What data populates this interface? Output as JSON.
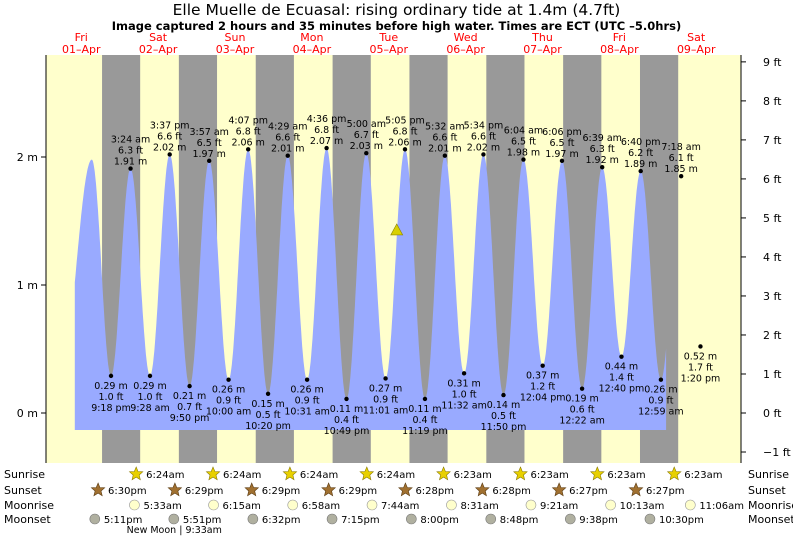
{
  "header": {
    "title": "Elle Muelle de Ecuasal: rising  ordinary tide at 1.4m (4.7ft)",
    "subtitle": "Image captured 2 hours and 35 minutes before high water. Times are ECT (UTC –5.0hrs)"
  },
  "colors": {
    "day": "#ffffcc",
    "night": "#999999",
    "tide": "#99aaff",
    "date_text": "#ff0000",
    "sun_star": "#e8d000",
    "sunset_star": "#a07030",
    "moon_light": "#ffffcc",
    "moon_dark": "#b0b0a0"
  },
  "chart_data": {
    "type": "area",
    "title": "Elle Muelle de Ecuasal: rising  ordinary tide at 1.4m (4.7ft)",
    "x_range_hours": [
      -1,
      195
    ],
    "y_range_m": [
      -0.45,
      2.65
    ],
    "days": [
      {
        "dow": "Fri",
        "date": "01–Apr"
      },
      {
        "dow": "Sat",
        "date": "02–Apr"
      },
      {
        "dow": "Sun",
        "date": "03–Apr"
      },
      {
        "dow": "Mon",
        "date": "04–Apr"
      },
      {
        "dow": "Tue",
        "date": "05–Apr"
      },
      {
        "dow": "Wed",
        "date": "06–Apr"
      },
      {
        "dow": "Thu",
        "date": "07–Apr"
      },
      {
        "dow": "Fri",
        "date": "08–Apr"
      },
      {
        "dow": "Sat",
        "date": "09–Apr"
      }
    ],
    "y_left_ticks": [
      {
        "value": 0,
        "label": "0 m"
      },
      {
        "value": 1,
        "label": "1 m"
      },
      {
        "value": 2,
        "label": "2 m"
      }
    ],
    "y_right_ticks": [
      {
        "ft": -1,
        "label": "−1 ft"
      },
      {
        "ft": 0,
        "label": "0 ft"
      },
      {
        "ft": 1,
        "label": "1 ft"
      },
      {
        "ft": 2,
        "label": "2 ft"
      },
      {
        "ft": 3,
        "label": "3 ft"
      },
      {
        "ft": 4,
        "label": "4 ft"
      },
      {
        "ft": 5,
        "label": "5 ft"
      },
      {
        "ft": 6,
        "label": "6 ft"
      },
      {
        "ft": 7,
        "label": "7 ft"
      },
      {
        "ft": 8,
        "label": "8 ft"
      },
      {
        "ft": 9,
        "label": "9 ft"
      }
    ],
    "extremes": [
      {
        "kind": "high",
        "t": "3:24 am",
        "ft": "6.3 ft",
        "m": "1.91 m",
        "hour": 27.4,
        "height": 1.91
      },
      {
        "kind": "high",
        "t": "3:37 pm",
        "ft": "6.6 ft",
        "m": "2.02 m",
        "hour": 39.62,
        "height": 2.02
      },
      {
        "kind": "high",
        "t": "3:57 am",
        "ft": "6.5 ft",
        "m": "1.97 m",
        "hour": 51.95,
        "height": 1.97
      },
      {
        "kind": "high",
        "t": "4:07 pm",
        "ft": "6.8 ft",
        "m": "2.06 m",
        "hour": 64.12,
        "height": 2.06
      },
      {
        "kind": "high",
        "t": "4:29 am",
        "ft": "6.6 ft",
        "m": "2.01 m",
        "hour": 76.48,
        "height": 2.01
      },
      {
        "kind": "high",
        "t": "4:36 pm",
        "ft": "6.8 ft",
        "m": "2.07 m",
        "hour": 88.6,
        "height": 2.07
      },
      {
        "kind": "high",
        "t": "5:00 am",
        "ft": "6.7 ft",
        "m": "2.03 m",
        "hour": 101.0,
        "height": 2.03
      },
      {
        "kind": "high",
        "t": "5:05 pm",
        "ft": "6.8 ft",
        "m": "2.06 m",
        "hour": 113.08,
        "height": 2.06
      },
      {
        "kind": "high",
        "t": "5:32 am",
        "ft": "6.6 ft",
        "m": "2.01 m",
        "hour": 125.53,
        "height": 2.01
      },
      {
        "kind": "high",
        "t": "5:34 pm",
        "ft": "6.6 ft",
        "m": "2.02 m",
        "hour": 137.57,
        "height": 2.02
      },
      {
        "kind": "high",
        "t": "6:04 am",
        "ft": "6.5 ft",
        "m": "1.98 m",
        "hour": 150.07,
        "height": 1.98
      },
      {
        "kind": "high",
        "t": "6:06 pm",
        "ft": "6.5 ft",
        "m": "1.97 m",
        "hour": 162.1,
        "height": 1.97
      },
      {
        "kind": "high",
        "t": "6:39 am",
        "ft": "6.3 ft",
        "m": "1.92 m",
        "hour": 174.65,
        "height": 1.92
      },
      {
        "kind": "high",
        "t": "6:40 pm",
        "ft": "6.2 ft",
        "m": "1.89 m",
        "hour": 186.67,
        "height": 1.89
      },
      {
        "kind": "high",
        "t": "7:18 am",
        "ft": "6.1 ft",
        "m": "1.85 m",
        "hour": 199.3,
        "height": 1.85
      },
      {
        "kind": "low",
        "t": "9:18 pm",
        "ft": "1.0 ft",
        "m": "0.29 m",
        "hour": 21.3,
        "height": 0.29
      },
      {
        "kind": "low",
        "t": "9:28 am",
        "ft": "1.0 ft",
        "m": "0.29 m",
        "hour": 33.47,
        "height": 0.29
      },
      {
        "kind": "low",
        "t": "9:50 pm",
        "ft": "0.7 ft",
        "m": "0.21 m",
        "hour": 45.83,
        "height": 0.21
      },
      {
        "kind": "low",
        "t": "10:00 am",
        "ft": "0.9 ft",
        "m": "0.26 m",
        "hour": 58.0,
        "height": 0.26
      },
      {
        "kind": "low",
        "t": "10:20 pm",
        "ft": "0.5 ft",
        "m": "0.15 m",
        "hour": 70.33,
        "height": 0.15
      },
      {
        "kind": "low",
        "t": "10:31 am",
        "ft": "0.9 ft",
        "m": "0.26 m",
        "hour": 82.52,
        "height": 0.26
      },
      {
        "kind": "low",
        "t": "10:49 pm",
        "ft": "0.4 ft",
        "m": "0.11 m",
        "hour": 94.82,
        "height": 0.11
      },
      {
        "kind": "low",
        "t": "11:01 am",
        "ft": "0.9 ft",
        "m": "0.27 m",
        "hour": 107.02,
        "height": 0.27
      },
      {
        "kind": "low",
        "t": "11:19 pm",
        "ft": "0.4 ft",
        "m": "0.11 m",
        "hour": 119.32,
        "height": 0.11
      },
      {
        "kind": "low",
        "t": "11:32 am",
        "ft": "1.0 ft",
        "m": "0.31 m",
        "hour": 131.53,
        "height": 0.31
      },
      {
        "kind": "low",
        "t": "11:50 pm",
        "ft": "0.5 ft",
        "m": "0.14 m",
        "hour": 143.83,
        "height": 0.14
      },
      {
        "kind": "low",
        "t": "12:04 pm",
        "ft": "1.2 ft",
        "m": "0.37 m",
        "hour": 156.07,
        "height": 0.37
      },
      {
        "kind": "low",
        "t": "12:22 am",
        "ft": "0.6 ft",
        "m": "0.19 m",
        "hour": 168.37,
        "height": 0.19
      },
      {
        "kind": "low",
        "t": "12:40 pm",
        "ft": "1.4 ft",
        "m": "0.44 m",
        "hour": 180.67,
        "height": 0.44
      },
      {
        "kind": "low",
        "t": "12:59 am",
        "ft": "0.9 ft",
        "m": "0.26 m",
        "hour": 192.98,
        "height": 0.26
      },
      {
        "kind": "low",
        "t": "1:20 pm",
        "ft": "1.7 ft",
        "m": "0.52 m",
        "hour": 205.33,
        "height": 0.52
      }
    ],
    "current": {
      "hour": 110.5,
      "height": 1.43
    },
    "nights": [
      {
        "start": 18.5,
        "end": 30.4
      },
      {
        "start": 42.48,
        "end": 54.4
      },
      {
        "start": 66.48,
        "end": 78.4
      },
      {
        "start": 90.48,
        "end": 102.4
      },
      {
        "start": 114.47,
        "end": 126.38
      },
      {
        "start": 138.47,
        "end": 150.38
      },
      {
        "start": 162.45,
        "end": 174.38
      },
      {
        "start": 186.45,
        "end": 198.38
      }
    ]
  },
  "astro": {
    "labels": {
      "sunrise": "Sunrise",
      "sunset": "Sunset",
      "moonrise": "Moonrise",
      "moonset": "Moonset"
    },
    "sunrise": [
      {
        "hour": 30.4,
        "t": "6:24am"
      },
      {
        "hour": 54.4,
        "t": "6:24am"
      },
      {
        "hour": 78.4,
        "t": "6:24am"
      },
      {
        "hour": 102.4,
        "t": "6:24am"
      },
      {
        "hour": 126.38,
        "t": "6:23am"
      },
      {
        "hour": 150.38,
        "t": "6:23am"
      },
      {
        "hour": 174.38,
        "t": "6:23am"
      },
      {
        "hour": 198.38,
        "t": "6:23am"
      }
    ],
    "sunset": [
      {
        "hour": 18.5,
        "t": "6:30pm"
      },
      {
        "hour": 42.48,
        "t": "6:29pm"
      },
      {
        "hour": 66.48,
        "t": "6:29pm"
      },
      {
        "hour": 90.48,
        "t": "6:29pm"
      },
      {
        "hour": 114.47,
        "t": "6:28pm"
      },
      {
        "hour": 138.47,
        "t": "6:28pm"
      },
      {
        "hour": 162.45,
        "t": "6:27pm"
      },
      {
        "hour": 186.45,
        "t": "6:27pm"
      }
    ],
    "moonrise": [
      {
        "hour": 29.55,
        "t": "5:33am"
      },
      {
        "hour": 54.25,
        "t": "6:15am"
      },
      {
        "hour": 78.97,
        "t": "6:58am"
      },
      {
        "hour": 103.73,
        "t": "7:44am"
      },
      {
        "hour": 128.52,
        "t": "8:31am"
      },
      {
        "hour": 153.35,
        "t": "9:21am"
      },
      {
        "hour": 178.22,
        "t": "10:13am"
      },
      {
        "hour": 203.1,
        "t": "11:06am"
      }
    ],
    "moonset": [
      {
        "hour": 17.18,
        "t": "5:11pm"
      },
      {
        "hour": 41.85,
        "t": "5:51pm"
      },
      {
        "hour": 66.53,
        "t": "6:32pm"
      },
      {
        "hour": 91.25,
        "t": "7:15pm"
      },
      {
        "hour": 116.0,
        "t": "8:00pm"
      },
      {
        "hour": 140.8,
        "t": "8:48pm"
      },
      {
        "hour": 165.63,
        "t": "9:38pm"
      },
      {
        "hour": 190.5,
        "t": "10:30pm"
      }
    ],
    "new_moon": {
      "hour": 33.55,
      "label": "New Moon | 9:33am"
    }
  }
}
